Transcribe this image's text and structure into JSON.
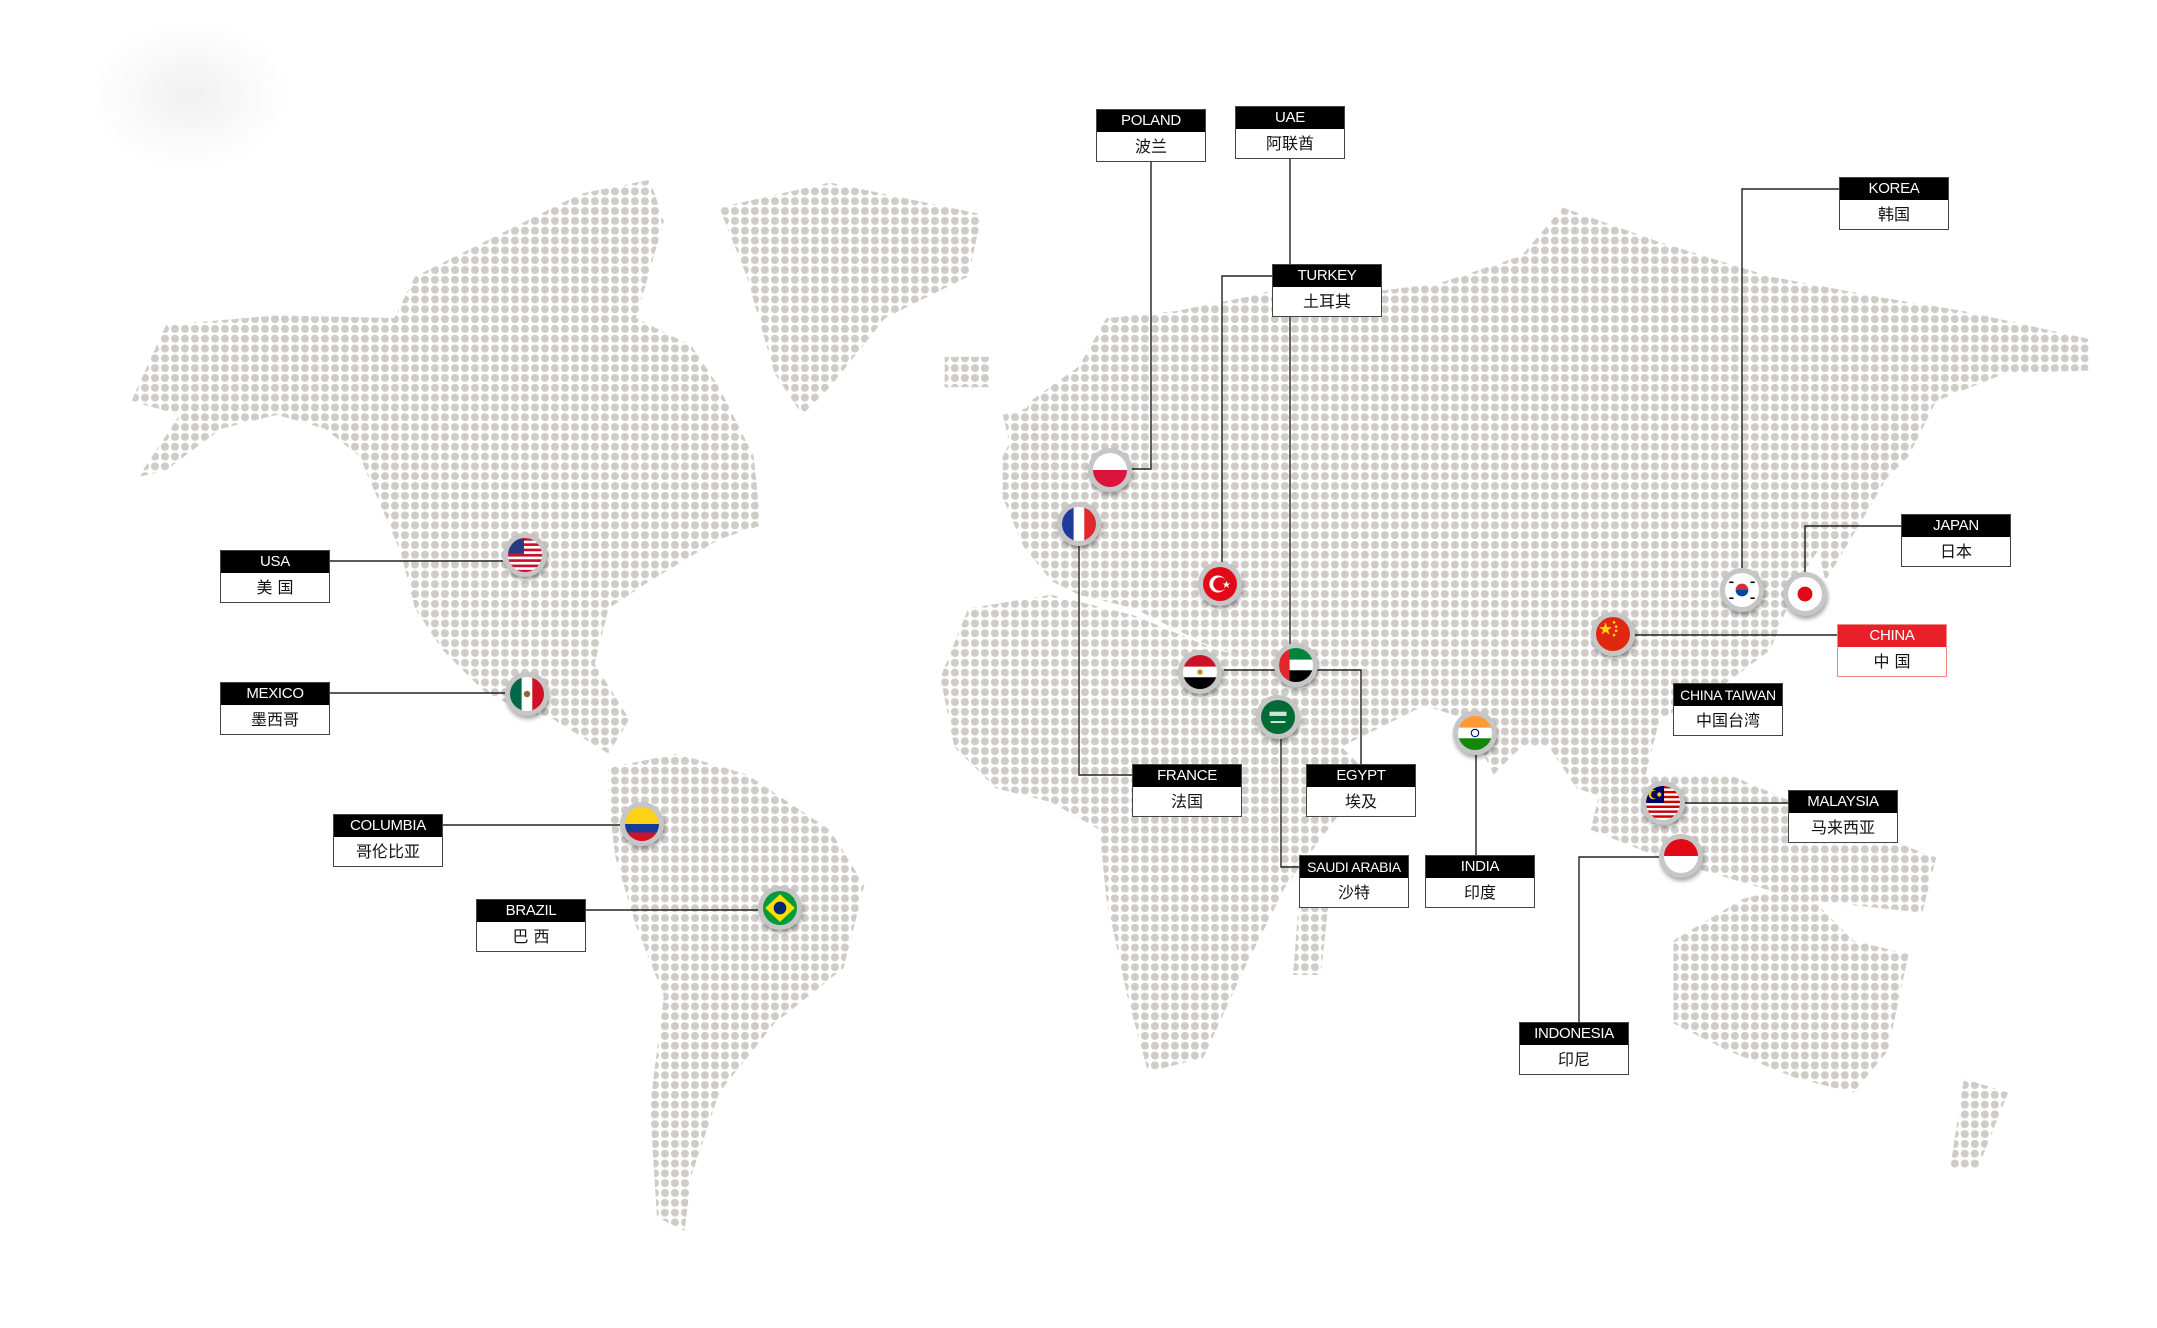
{
  "countries": [
    {
      "en": "USA",
      "zh": "美 国",
      "flag": "usa-flag-icon"
    },
    {
      "en": "MEXICO",
      "zh": "墨西哥",
      "flag": "mexico-flag-icon"
    },
    {
      "en": "COLUMBIA",
      "zh": "哥伦比亚",
      "flag": "colombia-flag-icon"
    },
    {
      "en": "BRAZIL",
      "zh": "巴 西",
      "flag": "brazil-flag-icon"
    },
    {
      "en": "POLAND",
      "zh": "波兰",
      "flag": "poland-flag-icon"
    },
    {
      "en": "UAE",
      "zh": "阿联酋",
      "flag": "uae-flag-icon"
    },
    {
      "en": "TURKEY",
      "zh": "土耳其",
      "flag": "turkey-flag-icon"
    },
    {
      "en": "FRANCE",
      "zh": "法国",
      "flag": "france-flag-icon"
    },
    {
      "en": "EGYPT",
      "zh": "埃及",
      "flag": "egypt-flag-icon"
    },
    {
      "en": "SAUDI ARABIA",
      "zh": "沙特",
      "flag": "saudi-flag-icon"
    },
    {
      "en": "INDIA",
      "zh": "印度",
      "flag": "india-flag-icon"
    },
    {
      "en": "KOREA",
      "zh": "韩国",
      "flag": "korea-flag-icon"
    },
    {
      "en": "JAPAN",
      "zh": "日本",
      "flag": "japan-flag-icon"
    },
    {
      "en": "CHINA",
      "zh": "中 国",
      "flag": "china-flag-icon",
      "highlight": "#e8202a"
    },
    {
      "en": "CHINA TAIWAN",
      "zh": "中国台湾"
    },
    {
      "en": "MALAYSIA",
      "zh": "马来西亚",
      "flag": "malaysia-flag-icon"
    },
    {
      "en": "INDONESIA",
      "zh": "印尼",
      "flag": "indonesia-flag-icon"
    }
  ],
  "colors": {
    "dots": "#cfccc8",
    "label_header": "#000000",
    "highlight": "#e8202a",
    "connector": "#222222"
  }
}
